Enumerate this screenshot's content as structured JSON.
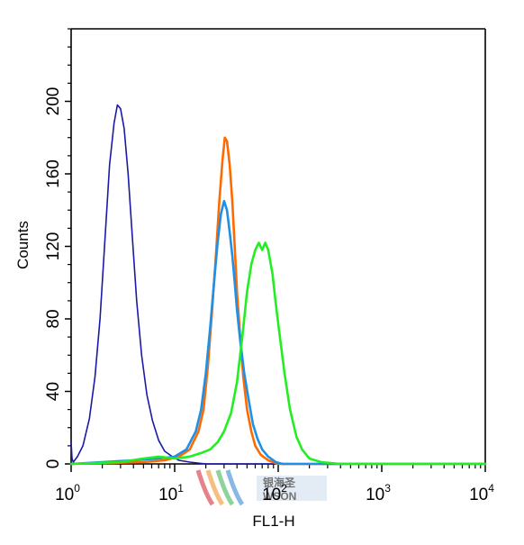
{
  "chart_data": {
    "type": "line",
    "title": "",
    "xlabel": "FL1-H",
    "ylabel": "Counts",
    "x_scale": "log",
    "xlim": [
      1,
      10000
    ],
    "ylim": [
      0,
      240
    ],
    "grid": false,
    "legend": "none",
    "x_ticks": [
      {
        "value": 1,
        "base": "10",
        "exp": "0"
      },
      {
        "value": 10,
        "base": "10",
        "exp": "1"
      },
      {
        "value": 100,
        "base": "10",
        "exp": "2"
      },
      {
        "value": 1000,
        "base": "10",
        "exp": "3"
      },
      {
        "value": 10000,
        "base": "10",
        "exp": "4"
      }
    ],
    "y_ticks": [
      0,
      40,
      80,
      120,
      160,
      200
    ],
    "series": [
      {
        "color": "#1a1aa6",
        "points": [
          [
            1.0,
            12
          ],
          [
            1.02,
            3
          ],
          [
            1.05,
            1
          ],
          [
            1.15,
            4
          ],
          [
            1.3,
            10
          ],
          [
            1.5,
            25
          ],
          [
            1.7,
            48
          ],
          [
            1.9,
            80
          ],
          [
            2.1,
            120
          ],
          [
            2.35,
            165
          ],
          [
            2.6,
            188
          ],
          [
            2.8,
            198
          ],
          [
            3.0,
            196
          ],
          [
            3.25,
            185
          ],
          [
            3.55,
            160
          ],
          [
            3.9,
            125
          ],
          [
            4.3,
            90
          ],
          [
            4.8,
            60
          ],
          [
            5.4,
            38
          ],
          [
            6.1,
            24
          ],
          [
            7.0,
            13
          ],
          [
            8.0,
            7
          ],
          [
            9.5,
            4
          ],
          [
            11,
            2
          ],
          [
            14,
            1
          ],
          [
            20,
            0
          ],
          [
            10000,
            0
          ]
        ]
      },
      {
        "color": "#ff6a00",
        "points": [
          [
            1,
            0
          ],
          [
            5,
            1
          ],
          [
            8,
            2
          ],
          [
            11,
            4
          ],
          [
            14,
            8
          ],
          [
            17,
            18
          ],
          [
            19,
            30
          ],
          [
            21,
            55
          ],
          [
            23,
            85
          ],
          [
            25,
            115
          ],
          [
            27,
            145
          ],
          [
            29,
            168
          ],
          [
            30.5,
            180
          ],
          [
            32,
            178
          ],
          [
            34,
            165
          ],
          [
            36,
            145
          ],
          [
            38,
            120
          ],
          [
            40,
            95
          ],
          [
            43,
            70
          ],
          [
            46,
            48
          ],
          [
            50,
            30
          ],
          [
            55,
            18
          ],
          [
            60,
            10
          ],
          [
            68,
            5
          ],
          [
            80,
            2
          ],
          [
            100,
            0
          ],
          [
            10000,
            0
          ]
        ]
      },
      {
        "color": "#1e90e6",
        "points": [
          [
            1,
            0
          ],
          [
            4,
            2
          ],
          [
            7,
            3
          ],
          [
            10,
            4
          ],
          [
            13,
            8
          ],
          [
            16,
            18
          ],
          [
            18,
            30
          ],
          [
            20,
            50
          ],
          [
            22,
            75
          ],
          [
            24,
            100
          ],
          [
            26,
            122
          ],
          [
            28,
            138
          ],
          [
            30,
            145
          ],
          [
            32,
            140
          ],
          [
            34,
            128
          ],
          [
            36,
            115
          ],
          [
            38,
            100
          ],
          [
            40,
            85
          ],
          [
            43,
            68
          ],
          [
            47,
            50
          ],
          [
            52,
            35
          ],
          [
            57,
            22
          ],
          [
            63,
            14
          ],
          [
            70,
            8
          ],
          [
            80,
            4
          ],
          [
            95,
            1
          ],
          [
            110,
            0
          ],
          [
            10000,
            0
          ]
        ]
      },
      {
        "color": "#22ee22",
        "points": [
          [
            1,
            0
          ],
          [
            3,
            1
          ],
          [
            5,
            3
          ],
          [
            7,
            4
          ],
          [
            10,
            3
          ],
          [
            14,
            4
          ],
          [
            18,
            6
          ],
          [
            22,
            8
          ],
          [
            26,
            12
          ],
          [
            30,
            18
          ],
          [
            35,
            28
          ],
          [
            40,
            45
          ],
          [
            45,
            70
          ],
          [
            50,
            95
          ],
          [
            55,
            110
          ],
          [
            60,
            118
          ],
          [
            65,
            122
          ],
          [
            70,
            118
          ],
          [
            75,
            122
          ],
          [
            80,
            118
          ],
          [
            88,
            105
          ],
          [
            95,
            88
          ],
          [
            105,
            68
          ],
          [
            115,
            50
          ],
          [
            130,
            30
          ],
          [
            150,
            15
          ],
          [
            170,
            8
          ],
          [
            200,
            3
          ],
          [
            260,
            1
          ],
          [
            400,
            0
          ],
          [
            10000,
            0
          ]
        ]
      }
    ]
  }
}
